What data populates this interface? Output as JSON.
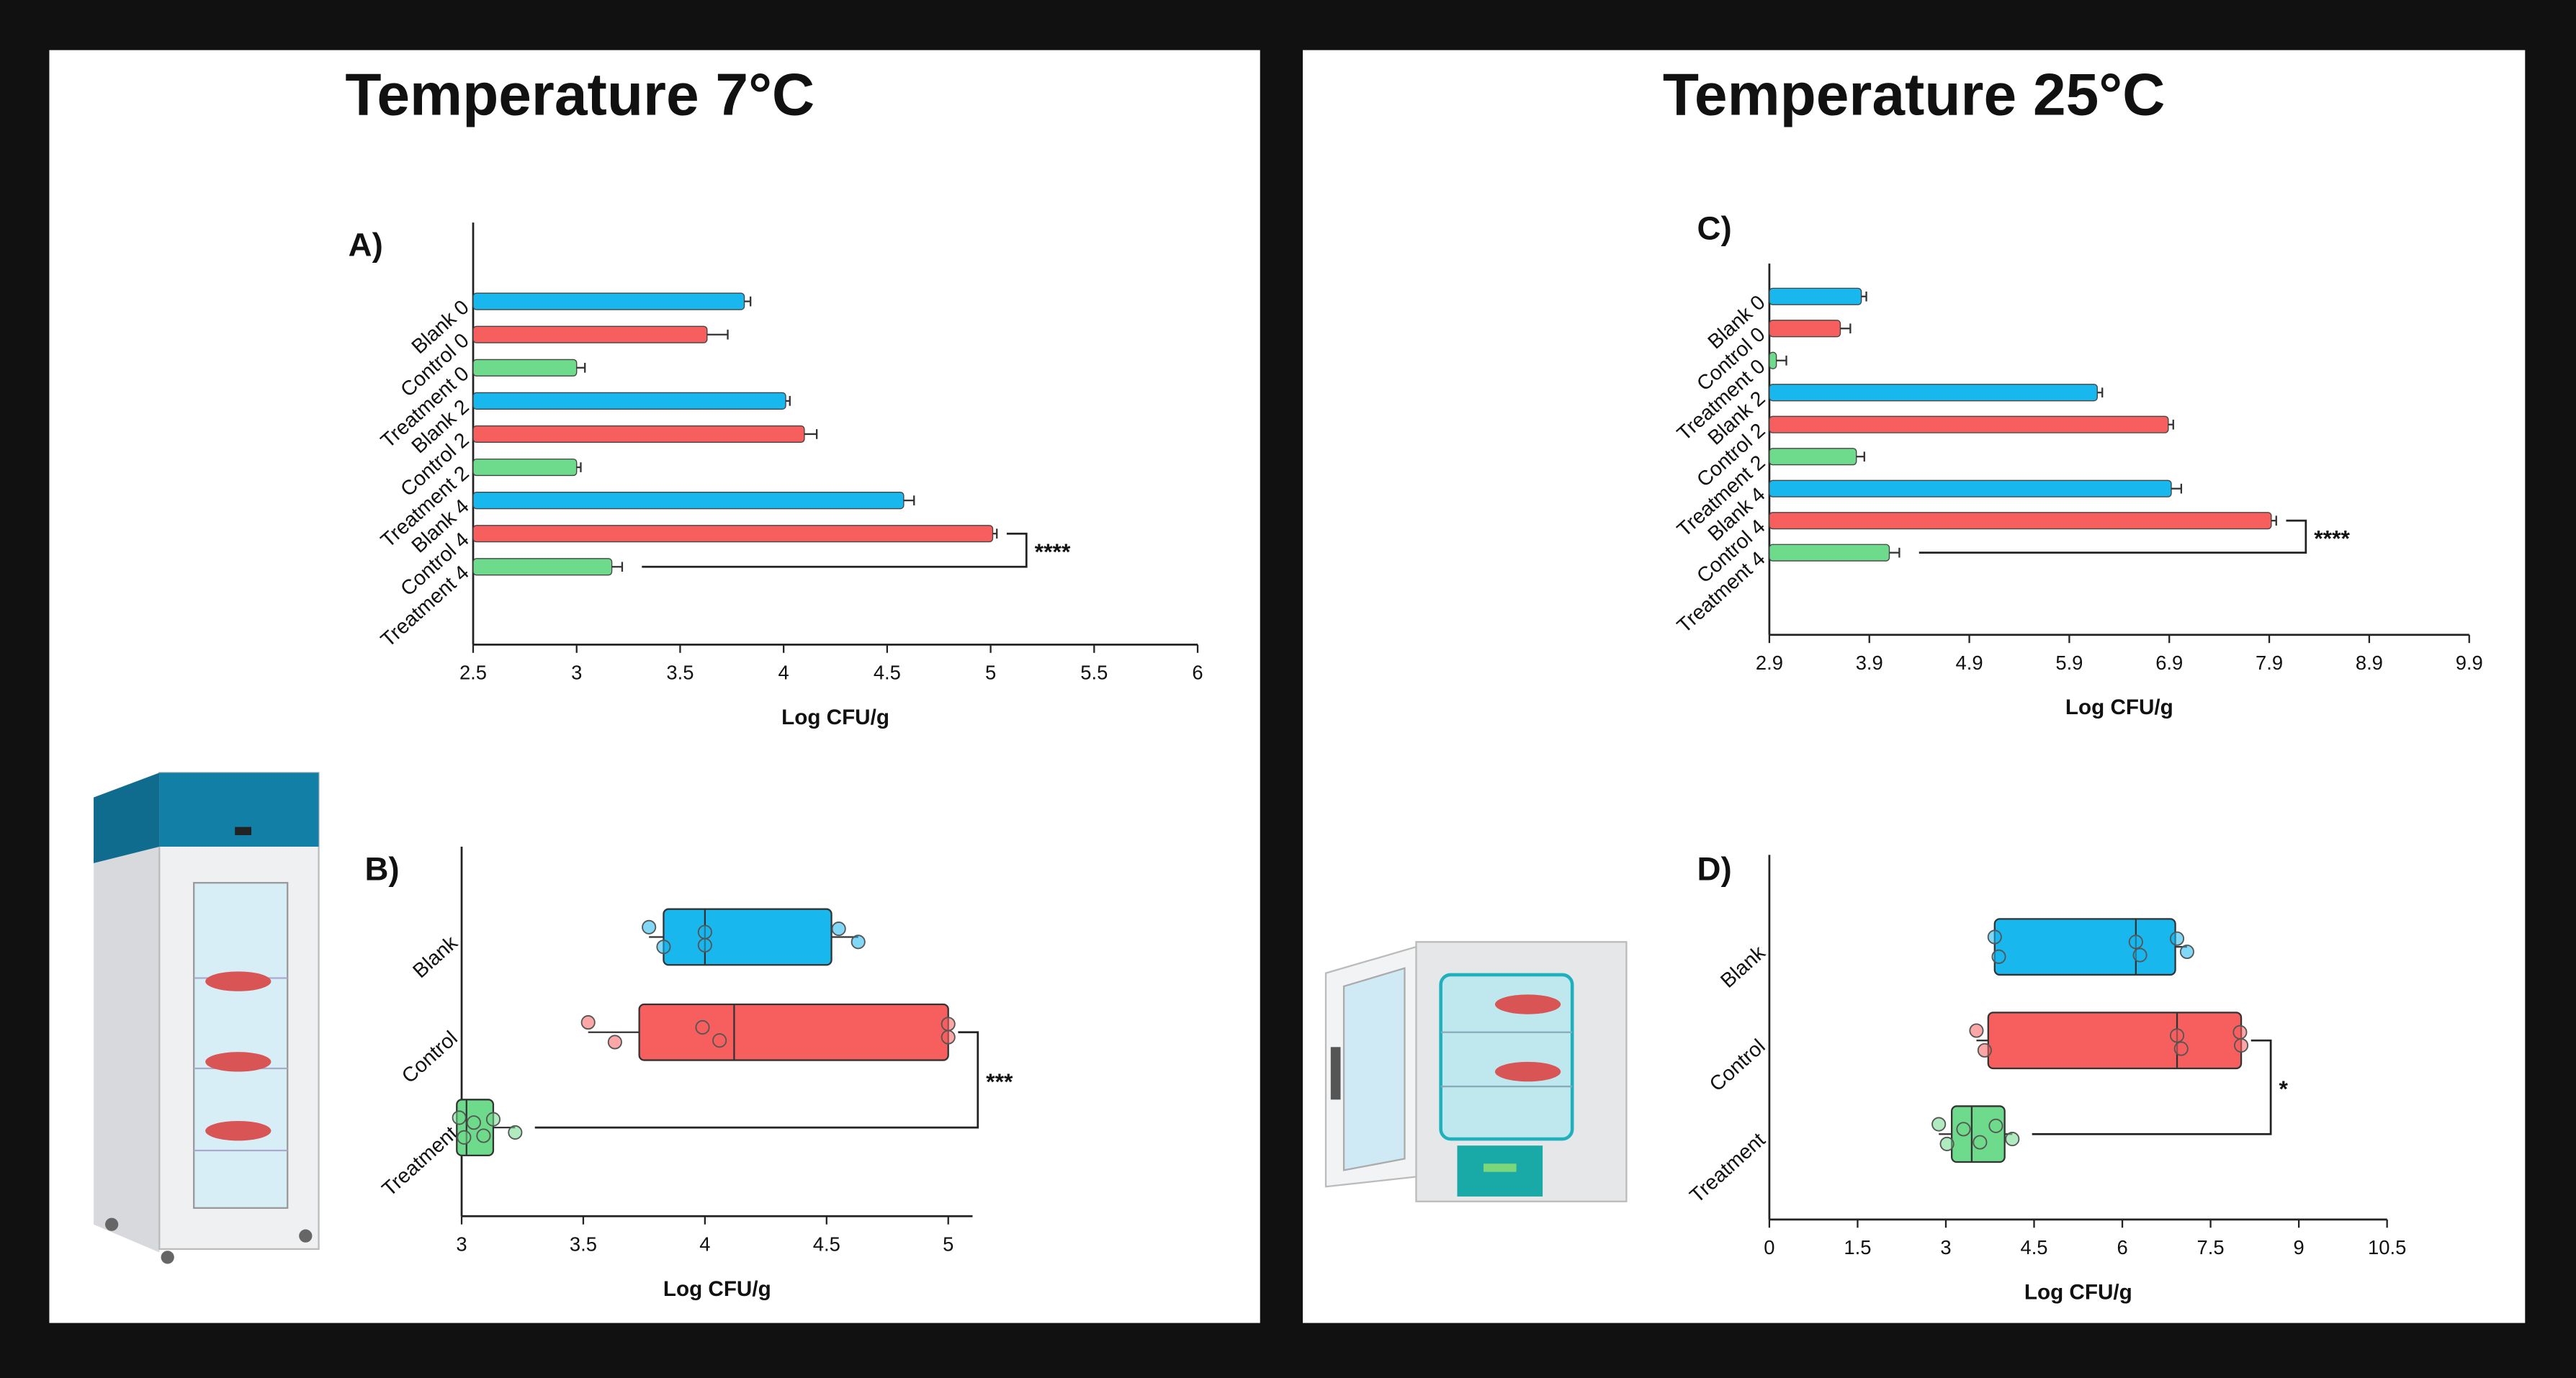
{
  "headings": [
    "Temperature 7°C",
    "Temperature 25°C"
  ],
  "chart_data": [
    {
      "type": "bar",
      "label": "A)",
      "xlabel": "Log CFU/g",
      "categories": [
        "Blank 0",
        "Control 0",
        "Treatment 0",
        "Blank 2",
        "Control 2",
        "Treatment 2",
        "Blank 4",
        "Control 4",
        "Treatment 4"
      ],
      "values": [
        3.81,
        3.63,
        3.0,
        4.01,
        4.1,
        3.0,
        4.58,
        5.01,
        3.17
      ],
      "errors": [
        0.03,
        0.1,
        0.04,
        0.02,
        0.06,
        0.02,
        0.05,
        0.02,
        0.05
      ],
      "colors": [
        "#18b7ee",
        "#f75e5e",
        "#6ddb8b",
        "#18b7ee",
        "#f75e5e",
        "#6ddb8b",
        "#18b7ee",
        "#f75e5e",
        "#6ddb8b"
      ],
      "xlim": [
        2.5,
        6
      ],
      "xticks": [
        2.5,
        3,
        3.5,
        4,
        4.5,
        5,
        5.5,
        6
      ],
      "annotation": "****"
    },
    {
      "type": "box",
      "label": "B)",
      "xlabel": "Log CFU/g",
      "categories": [
        "Blank",
        "Control",
        "Treatment"
      ],
      "colors": [
        "#18b7ee",
        "#f75e5e",
        "#6ddb8b"
      ],
      "boxes": [
        {
          "min": 3.77,
          "q1": 3.83,
          "median": 4.0,
          "q3": 4.52,
          "max": 4.63,
          "points": [
            3.77,
            3.83,
            4.0,
            4.0,
            4.55,
            4.63
          ]
        },
        {
          "min": 3.52,
          "q1": 3.73,
          "median": 4.12,
          "q3": 5.0,
          "max": 5.0,
          "points": [
            3.52,
            3.63,
            3.99,
            4.06,
            5.0,
            5.0
          ]
        },
        {
          "min": 2.98,
          "q1": 2.98,
          "median": 3.02,
          "q3": 3.13,
          "max": 3.22,
          "points": [
            2.99,
            3.01,
            3.05,
            3.09,
            3.13,
            3.22
          ]
        }
      ],
      "xlim": [
        3,
        5.1
      ],
      "xticks": [
        3,
        3.5,
        4,
        4.5,
        5
      ],
      "annotation": "***"
    },
    {
      "type": "bar",
      "label": "C)",
      "xlabel": "Log CFU/g",
      "categories": [
        "Blank 0",
        "Control 0",
        "Treatment 0",
        "Blank 2",
        "Control 2",
        "Treatment 2",
        "Blank 4",
        "Control 4",
        "Treatment 4"
      ],
      "values": [
        3.82,
        3.61,
        2.97,
        6.18,
        6.89,
        3.77,
        6.92,
        7.92,
        4.1
      ],
      "errors": [
        0.05,
        0.1,
        0.1,
        0.05,
        0.05,
        0.08,
        0.1,
        0.05,
        0.1
      ],
      "colors": [
        "#18b7ee",
        "#f75e5e",
        "#6ddb8b",
        "#18b7ee",
        "#f75e5e",
        "#6ddb8b",
        "#18b7ee",
        "#f75e5e",
        "#6ddb8b"
      ],
      "xlim": [
        2.9,
        9.9
      ],
      "xticks": [
        2.9,
        3.9,
        4.9,
        5.9,
        6.9,
        7.9,
        8.9,
        9.9
      ],
      "annotation": "****"
    },
    {
      "type": "box",
      "label": "D)",
      "xlabel": "Log CFU/g",
      "categories": [
        "Blank",
        "Control",
        "Treatment"
      ],
      "colors": [
        "#18b7ee",
        "#f75e5e",
        "#6ddb8b"
      ],
      "boxes": [
        {
          "min": 3.83,
          "q1": 3.83,
          "median": 6.23,
          "q3": 6.9,
          "max": 7.1,
          "points": [
            3.83,
            3.9,
            6.23,
            6.3,
            6.93,
            7.1
          ]
        },
        {
          "min": 3.52,
          "q1": 3.72,
          "median": 6.93,
          "q3": 8.02,
          "max": 8.02,
          "points": [
            3.52,
            3.66,
            6.93,
            7.0,
            8.0,
            8.02
          ]
        },
        {
          "min": 2.88,
          "q1": 3.1,
          "median": 3.44,
          "q3": 4.0,
          "max": 4.13,
          "points": [
            2.88,
            3.02,
            3.3,
            3.58,
            3.85,
            4.13
          ]
        }
      ],
      "xlim": [
        0,
        10.5
      ],
      "xticks": [
        0,
        1.5,
        3,
        4.5,
        6,
        7.5,
        9,
        10.5
      ],
      "annotation": "*"
    }
  ]
}
